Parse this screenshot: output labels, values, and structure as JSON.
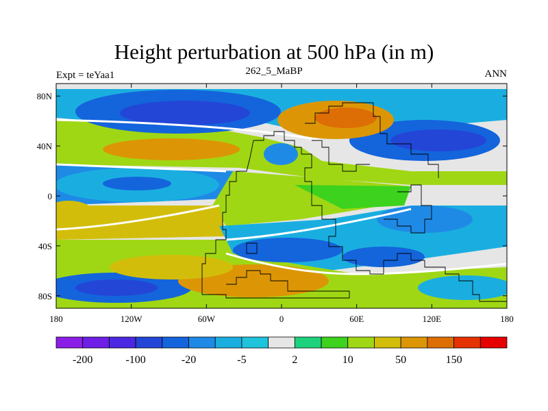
{
  "chart_data": {
    "type": "heatmap",
    "title": "Height perturbation at 500 hPa (in m)",
    "left_string": "Expt = teYaa1",
    "center_string": "262_5_MaBP",
    "right_string": "ANN",
    "x_ticks": [
      "180",
      "120W",
      "60W",
      "0",
      "60E",
      "120E",
      "180"
    ],
    "y_ticks": [
      "80N",
      "40N",
      "0",
      "40S",
      "80S"
    ],
    "xlim": [
      -180,
      180
    ],
    "ylim": [
      -90,
      90
    ],
    "colorbar": {
      "labels": [
        "-200",
        "-100",
        "-20",
        "-5",
        "2",
        "10",
        "50",
        "150"
      ],
      "colors": [
        "#8a1ee6",
        "#6e1ee6",
        "#4b28e1",
        "#2346d7",
        "#1464dc",
        "#1f8ae6",
        "#1aaee0",
        "#1fc3dc",
        "#e6e6e6",
        "#1ed27d",
        "#3cd21e",
        "#a0d714",
        "#d2be0a",
        "#dc9605",
        "#dc6e05",
        "#e63200",
        "#e60000"
      ]
    }
  }
}
